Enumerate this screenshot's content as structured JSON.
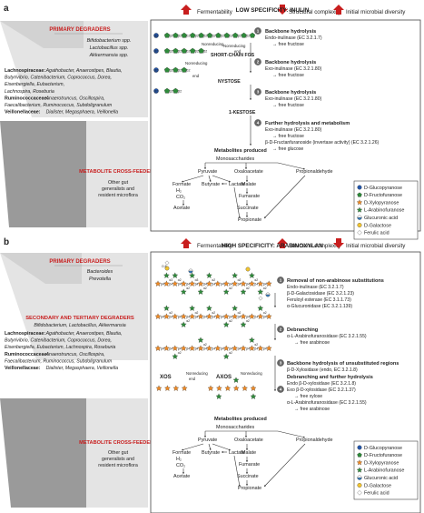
{
  "panelA": {
    "label": "a",
    "header": {
      "left": "Fermentability",
      "center": "Structural complexity",
      "right": "Initial microbial diversity"
    },
    "title": "LOW SPECIFICITY: INULIN",
    "leftPanel": {
      "primaryTitle": "PRIMARY DEGRADERS",
      "primaryList": [
        "Bifidobacterium spp.",
        "Lactobacillus spp.",
        "Akkermansia spp."
      ],
      "familyLines": [
        {
          "fam": "Lachnospiraceae:",
          "text": " Agathobacter, Anaerostipes, Blautia,"
        },
        {
          "fam": "",
          "text": "Butyrivibrio, Catenibacterium, Coprococcus, Dorea,"
        },
        {
          "fam": "",
          "text": "Eisenbergiella, Eubacterium,"
        },
        {
          "fam": "",
          "text": "Lachnospira, Roseburia"
        },
        {
          "fam": "Ruminococcaceae:",
          "text": " Anaerotruncus, Oscillospira,"
        },
        {
          "fam": "",
          "text": "Faecalibacterium, Ruminococcus, Subdoligranulum"
        },
        {
          "fam": "Veillonellaceae:",
          "text": " Dialister, Megasphaera, Veillonella"
        }
      ],
      "crossTitle": "METABOLITE CROSS-FEEDERS",
      "crossText": [
        "Other gut",
        "generalists and",
        "resident microflora"
      ]
    },
    "chainLabels": {
      "nonreducing": "Nonreducing",
      "end": "end",
      "sfos": "SHORT-CHAIN FOS",
      "nystose": "NYSTOSE",
      "kestose": "1-KESTOSE",
      "b2": "β2"
    },
    "steps": [
      {
        "n": "1",
        "title": "Backbone hydrolysis",
        "lines": [
          "Endo-inulinase (EC 3.2.1.7)",
          "→ free fructose"
        ]
      },
      {
        "n": "2",
        "title": "Backbone hydrolysis",
        "lines": [
          "Exo-inulinase (EC 3.2.1.80)",
          "→ free fructose"
        ]
      },
      {
        "n": "3",
        "title": "Backbone hydrolysis",
        "lines": [
          "Exo-inulinase (EC 3.2.1.80)",
          "→ free fructose"
        ]
      },
      {
        "n": "4",
        "title": "Further hydrolysis and metabolism",
        "lines": [
          "Exo-inulinase (EC 3.2.1.80)",
          "→ free fructose",
          "β-D-Fructanfuranoside (invertase activity) (EC 3.2.1.26)",
          "→ free glucose"
        ]
      }
    ],
    "metab": {
      "produced": "Metabolites produced",
      "mono": "Monosaccharides",
      "pyruvate": "Pyruvate",
      "oxalo": "Oxaloacetate",
      "propald": "Propionaldehyde",
      "formate": "Formate",
      "h2": "H₂",
      "co2": "CO₂",
      "butyrate": "Butyrate",
      "lactate": "Lactate",
      "acetate": "Acetate",
      "malate": "Malate",
      "fumarate": "Fumarate",
      "succinate": "Succinate",
      "propionate": "Propionate"
    },
    "legend": [
      "D-Glucopyranose",
      "D-Fructofuranose",
      "D-Xylopyranose",
      "L-Arabinofuranose",
      "Glucuronic acid",
      "D-Galactose",
      "Ferulic acid"
    ]
  },
  "panelB": {
    "label": "b",
    "header": {
      "left": "Fermentability",
      "center": "Structural complexity",
      "right": "Initial microbial diversity"
    },
    "title": "HIGH SPECIFICITY: ARABINOXYLAN",
    "leftPanel": {
      "primaryTitle": "PRIMARY DEGRADERS",
      "primaryList": [
        "Bacteroides",
        "Prevotella"
      ],
      "secondaryTitle": "SECONDARY AND TERTIARY DEGRADERS",
      "secondaryList": "Bifidobacterium, Lactobacillus, Akkermansia",
      "familyLines": [
        {
          "fam": "Lachnospiraceae:",
          "text": " Agathobacter, Anaerostipes, Blautia,"
        },
        {
          "fam": "",
          "text": "Butyrivibrio, Catenibacterium, Coprococcus, Dorea,"
        },
        {
          "fam": "",
          "text": "Eisenbergiella, Eubacterium, Lachnospira, Roseburia"
        },
        {
          "fam": "Ruminococcaceae:",
          "text": " Anaerotruncus, Oscillospira,"
        },
        {
          "fam": "",
          "text": "Faecalibacterium, Ruminococcus, Subdoligranulum"
        },
        {
          "fam": "Veillonellaceae:",
          "text": " Dialister, Megasphaera, Veillonella"
        }
      ],
      "crossTitle": "METABOLITE CROSS-FEEDERS",
      "crossText": [
        "Other gut",
        "generalists and",
        "resident microflora"
      ]
    },
    "chainLabels": {
      "xos": "XOS",
      "axos": "AXOS",
      "nonreducing": "Nonreducing",
      "end": "end",
      "b4": "β4",
      "a2": "α2",
      "a3": "α3",
      "o5": "O-5"
    },
    "steps": [
      {
        "n": "1",
        "title": "Removal of non-arabinose substitutions",
        "lines": [
          "Endo-inulinase (EC 3.2.1.7)",
          "β-D-Galactosidase (EC 3.2.1.23)",
          "Feruloyl esterase (EC 3.1.1.73)",
          "α-Glucuronidase (EC 3.2.1.139)"
        ]
      },
      {
        "n": "2",
        "title": "Debranching",
        "lines": [
          "α-L-Arabinofuranosidase (EC 3.2.1.55)",
          "→ free arabinose"
        ]
      },
      {
        "n": "3",
        "title": "Backbone hydrolysis of unsubstituted regions",
        "lines": [
          "β-D-Xylosidase (endo, EC 3.2.1.8)"
        ]
      },
      {
        "n": "4",
        "title": "Debranching and further hydrolysis",
        "lines": [
          "Endo β-D-xylosidase (EC 3.2.1.8)",
          "Exo β-D-xylosidase (EC 3.2.1.37)",
          "→ free xylose",
          "α-L-Arabinofuranosidase (EC 3.2.1.55)",
          "→ free arabinose"
        ]
      }
    ],
    "metab": {
      "produced": "Metabolites produced",
      "mono": "Monosaccharides",
      "pyruvate": "Pyruvate",
      "oxalo": "Oxaloacetate",
      "propald": "Propionaldehyde",
      "formate": "Formate",
      "h2": "H₂",
      "co2": "CO₂",
      "butyrate": "Butyrate",
      "lactate": "Lactate",
      "acetate": "Acetate",
      "malate": "Malate",
      "fumarate": "Fumarate",
      "succinate": "Succinate",
      "propionate": "Propionate"
    },
    "legend": [
      "D-Glucopyranose",
      "D-Fructofuranose",
      "D-Xylopyranose",
      "L-Arabinofuranose",
      "Glucuronic acid",
      "D-Galactose",
      "Ferulic acid"
    ]
  },
  "colors": {
    "glucose": "#2255aa",
    "fructose": "#2e8b3a",
    "xylose": "#f08a24",
    "arabinose": "#2e8b3a",
    "glucuronic": "#3a7fc1",
    "galactose": "#f2c531",
    "red": "#c81e1e",
    "ferulic": "#ffffff",
    "grayDark": "#9a9a9a",
    "grayLight": "#e4e4e4"
  }
}
